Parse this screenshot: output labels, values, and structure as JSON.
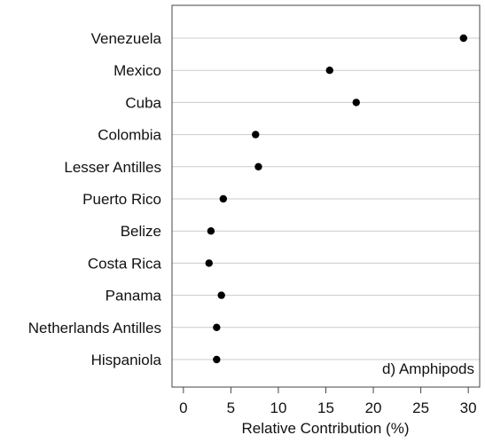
{
  "chart_data": {
    "type": "scatter",
    "style": "dot-plot",
    "categories": [
      "Venezuela",
      "Mexico",
      "Cuba",
      "Colombia",
      "Lesser Antilles",
      "Puerto Rico",
      "Belize",
      "Costa Rica",
      "Panama",
      "Netherlands Antilles",
      "Hispaniola"
    ],
    "values": [
      29.5,
      15.4,
      18.2,
      7.6,
      7.9,
      4.2,
      2.9,
      2.7,
      4.0,
      3.5,
      3.5
    ],
    "xlabel": "Relative Contribution (%)",
    "xlim": [
      -1.2,
      31.2
    ],
    "xticks": [
      0,
      5,
      10,
      15,
      20,
      25,
      30
    ],
    "panel_label": "d) Amphipods",
    "grid": "horizontal",
    "colors": {
      "point": "#000000",
      "grid": "#cccccc",
      "axis": "#444444",
      "text": "#111111"
    }
  }
}
